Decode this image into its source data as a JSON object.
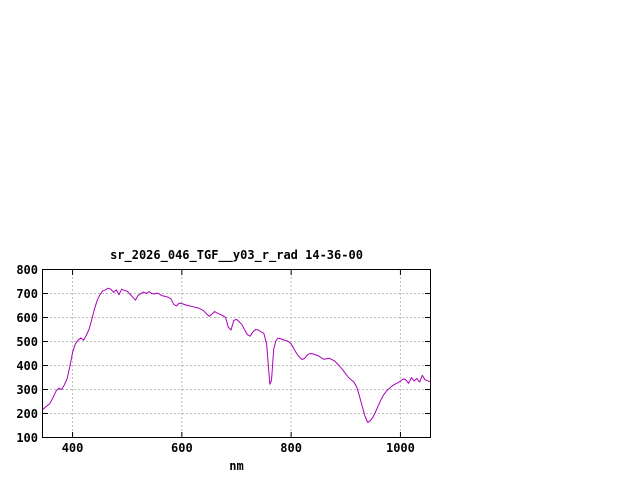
{
  "chart_data": {
    "type": "line",
    "title": "sr_2026_046_TGF__y03_r_rad 14-36-00",
    "xlabel": "nm",
    "ylabel": "",
    "xlim": [
      345,
      1055
    ],
    "ylim": [
      100,
      800
    ],
    "xticks": [
      400,
      600,
      800,
      1000
    ],
    "yticks": [
      100,
      200,
      300,
      400,
      500,
      600,
      700,
      800
    ],
    "grid": true,
    "legend": "none",
    "line_color": "#aa00bb",
    "x": [
      345,
      352,
      358,
      364,
      370,
      375,
      380,
      385,
      390,
      395,
      400,
      405,
      410,
      415,
      420,
      425,
      430,
      435,
      440,
      445,
      450,
      455,
      460,
      465,
      470,
      475,
      480,
      485,
      490,
      495,
      500,
      505,
      510,
      515,
      520,
      525,
      530,
      535,
      540,
      545,
      550,
      555,
      560,
      565,
      570,
      575,
      580,
      585,
      590,
      595,
      600,
      605,
      610,
      615,
      620,
      625,
      630,
      635,
      640,
      645,
      650,
      655,
      660,
      665,
      670,
      675,
      680,
      685,
      690,
      695,
      700,
      705,
      710,
      715,
      720,
      725,
      730,
      735,
      740,
      745,
      750,
      755,
      758,
      761,
      764,
      768,
      772,
      776,
      780,
      785,
      790,
      795,
      800,
      805,
      810,
      815,
      820,
      825,
      830,
      835,
      840,
      845,
      850,
      855,
      860,
      865,
      870,
      875,
      880,
      885,
      890,
      895,
      900,
      905,
      910,
      915,
      920,
      925,
      930,
      935,
      940,
      945,
      950,
      955,
      960,
      965,
      970,
      975,
      980,
      985,
      990,
      995,
      1000,
      1005,
      1010,
      1015,
      1020,
      1025,
      1030,
      1035,
      1040,
      1045,
      1050,
      1055
    ],
    "y": [
      215,
      230,
      240,
      265,
      295,
      305,
      300,
      320,
      345,
      395,
      455,
      490,
      505,
      515,
      505,
      525,
      550,
      590,
      635,
      670,
      695,
      710,
      715,
      722,
      718,
      705,
      715,
      695,
      718,
      712,
      710,
      698,
      685,
      672,
      692,
      700,
      706,
      700,
      708,
      700,
      698,
      702,
      696,
      690,
      688,
      684,
      678,
      655,
      648,
      660,
      658,
      654,
      650,
      648,
      645,
      642,
      640,
      634,
      628,
      616,
      605,
      614,
      625,
      618,
      613,
      608,
      600,
      560,
      548,
      588,
      592,
      582,
      570,
      548,
      528,
      522,
      540,
      550,
      548,
      540,
      534,
      490,
      408,
      322,
      338,
      468,
      502,
      514,
      512,
      508,
      504,
      500,
      490,
      470,
      450,
      436,
      425,
      430,
      445,
      450,
      448,
      444,
      440,
      432,
      426,
      428,
      430,
      424,
      418,
      406,
      394,
      380,
      364,
      350,
      340,
      330,
      310,
      272,
      230,
      190,
      163,
      170,
      186,
      210,
      236,
      260,
      280,
      295,
      305,
      315,
      322,
      328,
      335,
      344,
      340,
      326,
      350,
      336,
      346,
      331,
      359,
      341,
      336,
      332
    ]
  }
}
